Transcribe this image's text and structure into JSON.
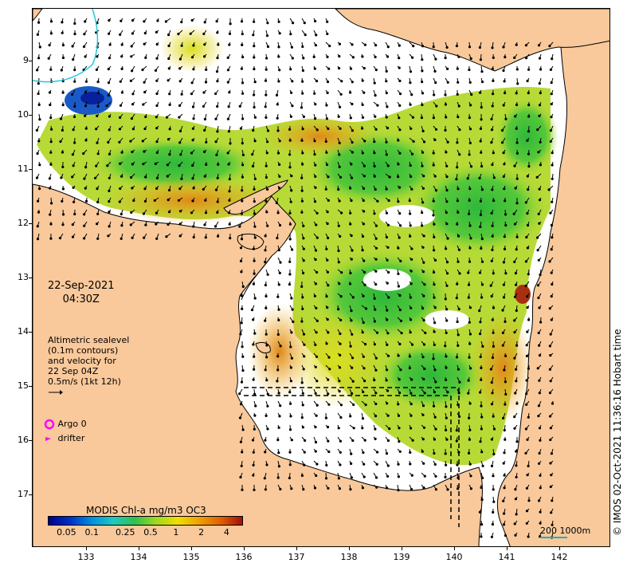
{
  "map": {
    "land_color": "#f9c99b",
    "water_color": "#ffffff",
    "lat_labels": [
      "9",
      "10",
      "11",
      "12",
      "13",
      "14",
      "15",
      "16",
      "17"
    ],
    "lat_values": [
      -9,
      -10,
      -11,
      -12,
      -13,
      -14,
      -15,
      -16,
      -17
    ],
    "lon_labels": [
      "133",
      "134",
      "135",
      "136",
      "137",
      "138",
      "139",
      "140",
      "141",
      "142"
    ],
    "lon_values": [
      133,
      134,
      135,
      136,
      137,
      138,
      139,
      140,
      141,
      142
    ]
  },
  "date": {
    "day": "22-Sep-2021",
    "time": "04:30Z"
  },
  "altimetry": {
    "line1": "Altimetric sealevel",
    "line2": "(0.1m contours)",
    "line3": "and velocity for",
    "line4": "22 Sep 04Z",
    "line5": "0.5m/s (1kt 12h)"
  },
  "legend": {
    "argo": "Argo 0",
    "drifter": "drifter",
    "argo_color": "#ff00ff",
    "drifter_color": "#ff00ff"
  },
  "credit": "© IMOS 02-Oct-2021 11:36:16 Hobart time",
  "scale": {
    "label": "200  1000m"
  },
  "colorbar": {
    "title": "MODIS Chl-a mg/m3 OC3",
    "ticks": [
      "0.05",
      "0.1",
      "0.25",
      "0.5",
      "1",
      "2",
      "4"
    ],
    "tick_values": [
      0.05,
      0.1,
      0.25,
      0.5,
      1,
      2,
      4
    ],
    "colors": [
      "#00008c",
      "#0030c8",
      "#0090e0",
      "#20c8c0",
      "#30c050",
      "#a0d820",
      "#f0e000",
      "#f0a000",
      "#e06000",
      "#a01010"
    ]
  }
}
